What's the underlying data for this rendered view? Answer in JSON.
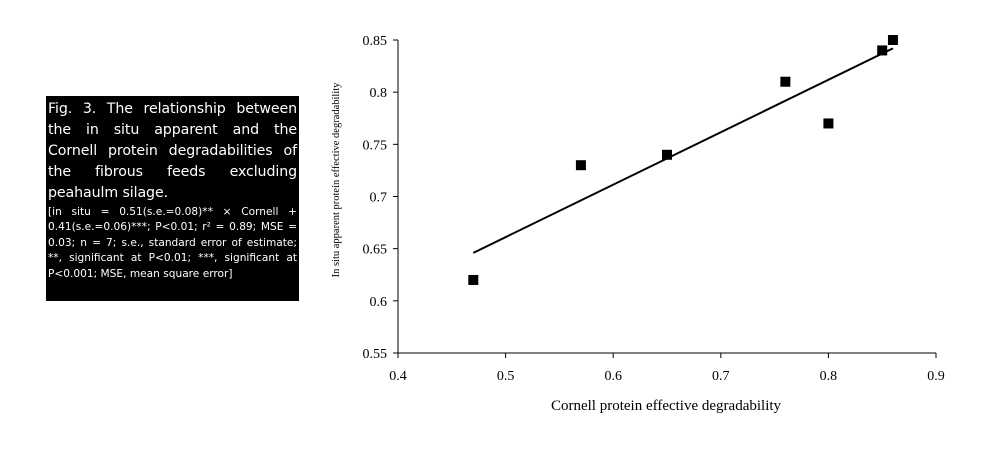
{
  "caption": {
    "title": "Fig. 3. The relationship between the in situ apparent and the Cornell protein degradabilities of the fibrous feeds excluding peahaulm silage.",
    "body": "[in situ = 0.51(s.e.=0.08)** × Cornell + 0.41(s.e.=0.06)***; P<0.01; r² = 0.89; MSE = 0.03; n = 7; s.e., standard error of estimate; **, significant at P<0.01; ***, significant at P<0.001; MSE, mean square error]"
  },
  "chart_data": {
    "type": "scatter",
    "title": "",
    "xlabel": "Cornell protein effective degradability",
    "ylabel": "In situ apparent protein effective degradability",
    "xlim": [
      0.4,
      0.9
    ],
    "ylim": [
      0.55,
      0.85
    ],
    "x_ticks": [
      "0.4",
      "0.5",
      "0.6",
      "0.7",
      "0.8",
      "0.9"
    ],
    "y_ticks": [
      "0.55",
      "0.6",
      "0.65",
      "0.7",
      "0.75",
      "0.8",
      "0.85"
    ],
    "grid": false,
    "marker": "square",
    "marker_color": "#000000",
    "points": [
      {
        "x": 0.47,
        "y": 0.62
      },
      {
        "x": 0.57,
        "y": 0.73
      },
      {
        "x": 0.65,
        "y": 0.74
      },
      {
        "x": 0.76,
        "y": 0.81
      },
      {
        "x": 0.8,
        "y": 0.77
      },
      {
        "x": 0.85,
        "y": 0.84
      },
      {
        "x": 0.86,
        "y": 0.85
      }
    ],
    "trendline": {
      "x": [
        0.47,
        0.86
      ],
      "y": [
        0.646,
        0.842
      ]
    }
  }
}
